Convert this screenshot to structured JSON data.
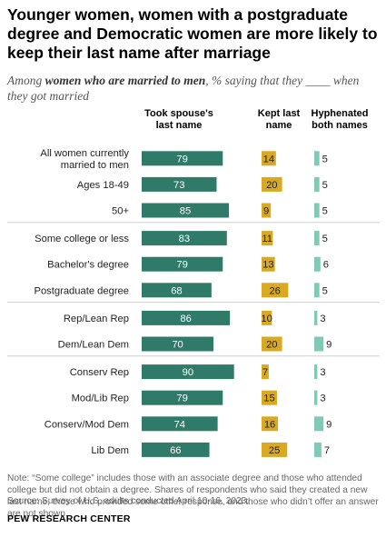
{
  "title": "Younger women, women with a postgraduate degree and Democratic women are more likely to keep their last name after marriage",
  "subtitle": {
    "prefix": "Among ",
    "emphasis": "women who are married to men",
    "suffix": ", % saying that they ____ when they got married"
  },
  "chart_data": {
    "type": "bar",
    "columns": [
      {
        "label_lines": [
          "Took spouse's",
          "last name"
        ],
        "color": "#2f7a68",
        "key": "took"
      },
      {
        "label_lines": [
          "Kept last",
          "name"
        ],
        "color": "#d9a922",
        "key": "kept"
      },
      {
        "label_lines": [
          "Hyphenated",
          "both names"
        ],
        "color": "#7fc9b5",
        "key": "hyphenated"
      }
    ],
    "groups": [
      {
        "rows": [
          {
            "label_lines": [
              "All women currently",
              "married to men"
            ],
            "took": 79,
            "kept": 14,
            "hyphenated": 5
          },
          {
            "label_lines": [
              "Ages 18-49"
            ],
            "took": 73,
            "kept": 20,
            "hyphenated": 5
          },
          {
            "label_lines": [
              "50+"
            ],
            "took": 85,
            "kept": 9,
            "hyphenated": 5
          }
        ]
      },
      {
        "rows": [
          {
            "label_lines": [
              "Some college or less"
            ],
            "took": 83,
            "kept": 11,
            "hyphenated": 5
          },
          {
            "label_lines": [
              "Bachelor's degree"
            ],
            "took": 79,
            "kept": 13,
            "hyphenated": 6
          },
          {
            "label_lines": [
              "Postgraduate degree"
            ],
            "took": 68,
            "kept": 26,
            "hyphenated": 5
          }
        ]
      },
      {
        "rows": [
          {
            "label_lines": [
              "Rep/Lean Rep"
            ],
            "took": 86,
            "kept": 10,
            "hyphenated": 3
          },
          {
            "label_lines": [
              "Dem/Lean Dem"
            ],
            "took": 70,
            "kept": 20,
            "hyphenated": 9
          }
        ]
      },
      {
        "rows": [
          {
            "label_lines": [
              "Conserv Rep"
            ],
            "took": 90,
            "kept": 7,
            "hyphenated": 3
          },
          {
            "label_lines": [
              "Mod/Lib Rep"
            ],
            "took": 79,
            "kept": 15,
            "hyphenated": 3
          },
          {
            "label_lines": [
              "Conserv/Mod Dem"
            ],
            "took": 74,
            "kept": 16,
            "hyphenated": 9
          },
          {
            "label_lines": [
              "Lib Dem"
            ],
            "took": 66,
            "kept": 25,
            "hyphenated": 7
          }
        ]
      }
    ]
  },
  "note": "Note: “Some college” includes those with an associate degree and those who attended college but did not obtain a degree. Shares of respondents who said they created a new last name, those who provided some other response, and those who didn’t offer an answer are not shown.",
  "source": "Source: Survey of U.S. adults conducted April 10-16, 2023.",
  "brand": "PEW RESEARCH CENTER"
}
